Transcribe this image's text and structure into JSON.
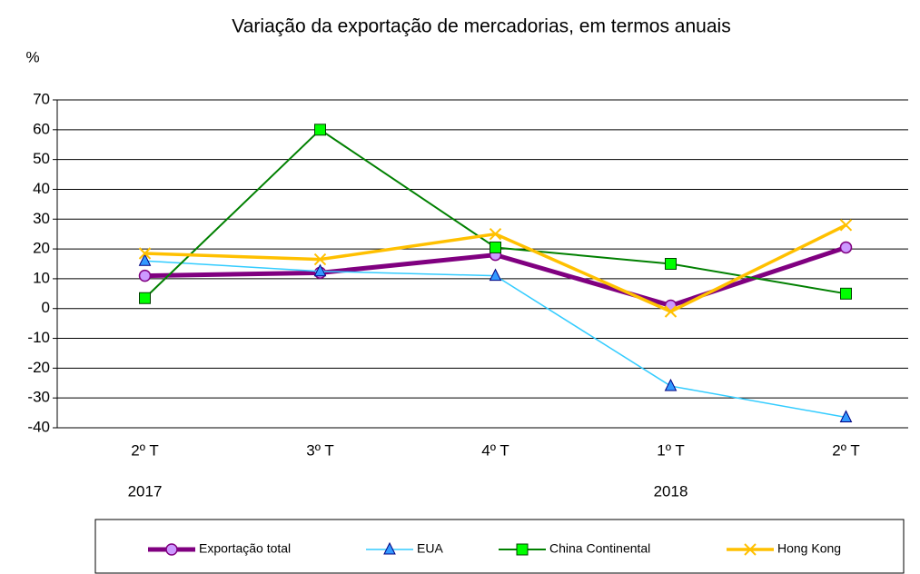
{
  "chart_data": {
    "type": "line",
    "title": "Variação da exportação de mercadorias, em termos anuais",
    "ylabel": "%",
    "categories": [
      "2º T",
      "3º T",
      "4º T",
      "1º T",
      "2º T"
    ],
    "year_labels": [
      "2017",
      null,
      null,
      "2018",
      null
    ],
    "ylim": [
      -40,
      70
    ],
    "yticks": [
      -40,
      -30,
      -20,
      -10,
      0,
      10,
      20,
      30,
      40,
      50,
      60,
      70
    ],
    "grid": true,
    "legend": "bottom",
    "series": [
      {
        "name": "Exportação total",
        "color": "#800080",
        "marker": "circle",
        "marker_color": "#cc99ff",
        "values": [
          11,
          12,
          18,
          1,
          20.5
        ]
      },
      {
        "name": "EUA",
        "color": "#33ccff",
        "marker": "triangle",
        "marker_color": "#3399ff",
        "values": [
          16,
          12.5,
          11,
          -26,
          -36.5
        ]
      },
      {
        "name": "China Continental",
        "color": "#008000",
        "marker": "square",
        "marker_color": "#00ff00",
        "values": [
          3.5,
          60,
          20.5,
          15,
          5
        ]
      },
      {
        "name": "Hong Kong",
        "color": "#ffc000",
        "marker": "x",
        "marker_color": "#ffc000",
        "values": [
          18.5,
          16.5,
          25,
          -1,
          28
        ]
      }
    ]
  }
}
